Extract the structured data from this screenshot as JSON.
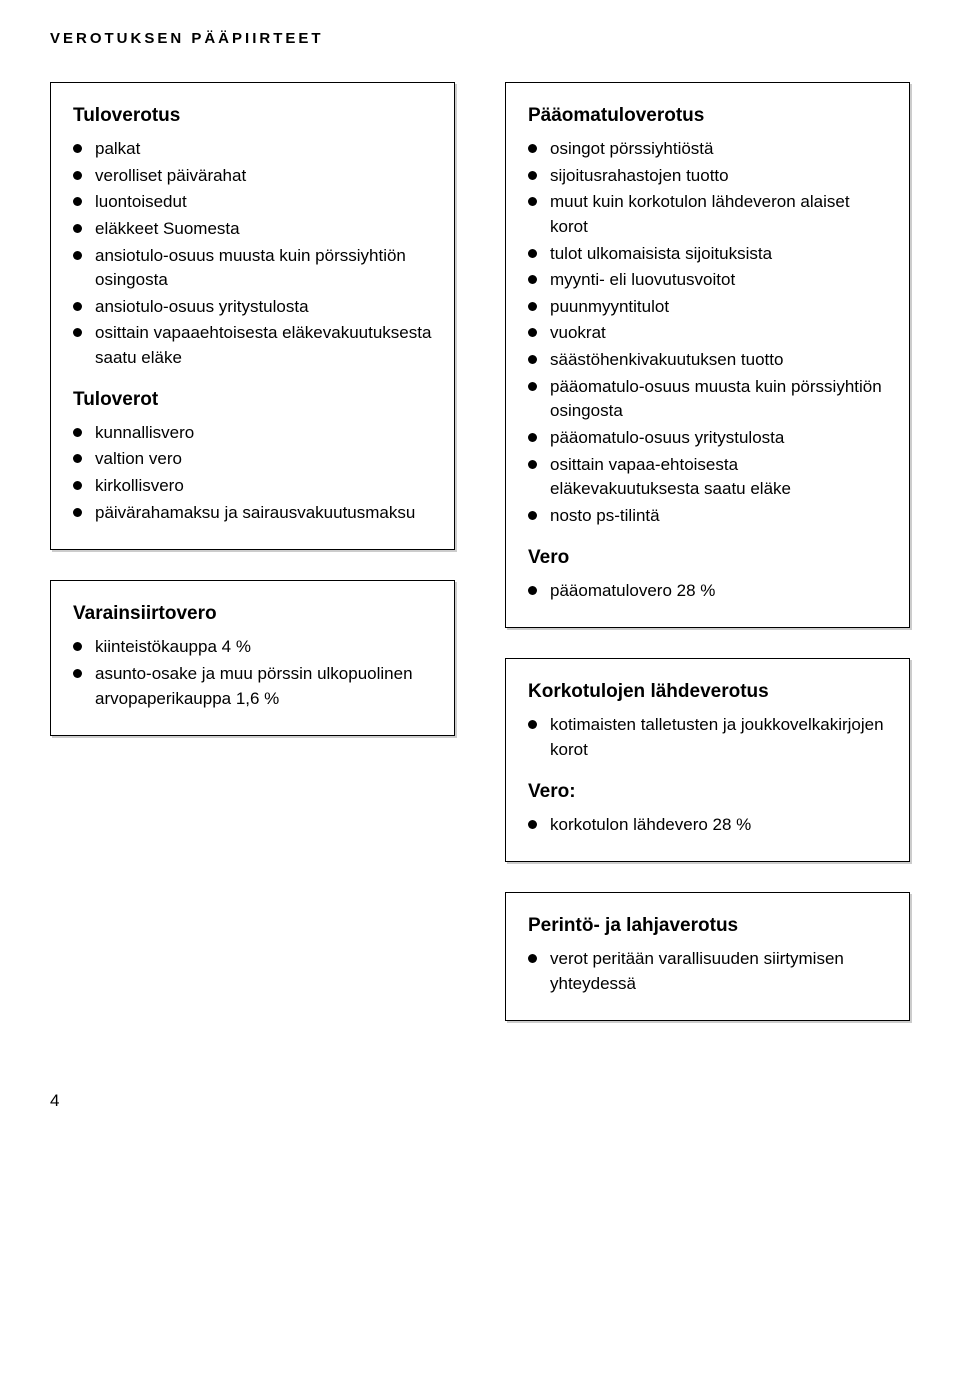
{
  "header": "VEROTUKSEN PÄÄPIIRTEET",
  "page_number": "4",
  "left": {
    "box1": {
      "title1": "Tuloverotus",
      "items1": [
        "palkat",
        "verolliset päivärahat",
        "luontoisedut",
        "eläkkeet Suomesta",
        "ansiotulo-osuus muusta kuin pörssiyhtiön osingosta",
        "ansiotulo-osuus yritystulosta",
        "osittain vapaaehtoisesta eläke­vakuutuksesta saatu eläke"
      ],
      "title2": "Tuloverot",
      "items2": [
        "kunnallisvero",
        "valtion vero",
        "kirkollisvero",
        "päivärahamaksu ja sairausvakuutusmaksu"
      ]
    },
    "box2": {
      "title": "Varainsiirtovero",
      "items": [
        "kiinteistökauppa 4 %",
        "asunto-osake ja muu pörssin ulkopuolinen arvopaperikauppa 1,6 %"
      ]
    }
  },
  "right": {
    "box1": {
      "title1": "Pääomatuloverotus",
      "items1": [
        "osingot pörssiyhtiöstä",
        "sijoitusrahastojen tuotto",
        "muut kuin korkotulon lähdeveron alaiset korot",
        "tulot ulkomaisista sijoituksista",
        "myynti- eli luovutusvoitot",
        "puunmyyntitulot",
        "vuokrat",
        "säästöhenkivakuutuksen tuotto",
        "pääomatulo-osuus muusta kuin pörssiyhtiön osingosta",
        "pääomatulo-osuus yritystulosta",
        "osittain vapaa-ehtoisesta eläkevakuutuksesta saatu eläke",
        "nosto ps-tilintä"
      ],
      "title2": "Vero",
      "items2": [
        "pääomatulovero 28 %"
      ]
    },
    "box2": {
      "title1": "Korkotulojen lähdeverotus",
      "items1": [
        "kotimaisten talletusten ja joukkovelkakirjojen korot"
      ],
      "title2": "Vero:",
      "items2": [
        "korkotulon lähdevero 28 %"
      ]
    },
    "box3": {
      "title": "Perintö- ja lahjaverotus",
      "items": [
        "verot peritään varallisuuden siirtymisen yhteydessä"
      ]
    }
  }
}
